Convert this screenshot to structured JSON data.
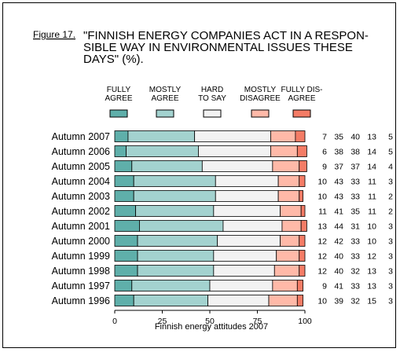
{
  "figure_label": "Figure 17.",
  "title_lines": [
    "\"FINNISH ENERGY COMPANIES ACT IN A RESPON-",
    "SIBLE WAY IN ENVIRONMENTAL ISSUES THESE",
    "DAYS\" (%)."
  ],
  "colors": {
    "fully_agree": "#5fafaa",
    "mostly_agree": "#a3d2cf",
    "hard_to_say": "#f2f2f2",
    "mostly_disagree": "#ffb9a8",
    "fully_disagree": "#f47c66",
    "outline": "#000000"
  },
  "chart_data": {
    "type": "bar",
    "orientation": "horizontal",
    "stacked": true,
    "title": "\"FINNISH ENERGY COMPANIES ACT IN A RESPONSIBLE WAY IN ENVIRONMENTAL ISSUES THESE DAYS\" (%).",
    "xlabel": "Finnish energy attitudes 2007",
    "ylabel": "",
    "xlim": [
      0,
      100
    ],
    "xticks": [
      0,
      25,
      50,
      75,
      100
    ],
    "legend_position": "top",
    "grid": false,
    "categories": [
      "Autumn 2007",
      "Autumn 2006",
      "Autumn 2005",
      "Autumn 2004",
      "Autumn 2003",
      "Autumn 2002",
      "Autumn 2001",
      "Autumn 2000",
      "Autumn 1999",
      "Autumn 1998",
      "Autumn 1997",
      "Autumn 1996"
    ],
    "series": [
      {
        "name": "FULLY AGREE",
        "legend_lines": [
          "FULLY",
          "AGREE"
        ],
        "color": "#5fafaa",
        "values": [
          7,
          6,
          9,
          10,
          10,
          11,
          13,
          12,
          12,
          12,
          9,
          10
        ]
      },
      {
        "name": "MOSTLY AGREE",
        "legend_lines": [
          "MOSTLY",
          "AGREE"
        ],
        "color": "#a3d2cf",
        "values": [
          35,
          38,
          37,
          43,
          43,
          41,
          44,
          42,
          40,
          40,
          41,
          39
        ]
      },
      {
        "name": "HARD TO SAY",
        "legend_lines": [
          "HARD",
          "TO SAY"
        ],
        "color": "#f2f2f2",
        "values": [
          40,
          38,
          37,
          33,
          33,
          35,
          31,
          33,
          33,
          32,
          33,
          32
        ]
      },
      {
        "name": "MOSTLY DISAGREE",
        "legend_lines": [
          "MOSTLY",
          "DISAGREE"
        ],
        "color": "#ffb9a8",
        "values": [
          13,
          14,
          14,
          11,
          11,
          11,
          10,
          10,
          12,
          13,
          13,
          15
        ]
      },
      {
        "name": "FULLY DIS-AGREE",
        "legend_lines": [
          "FULLY DIS-",
          "AGREE"
        ],
        "color": "#f47c66",
        "values": [
          5,
          5,
          4,
          3,
          2,
          2,
          3,
          3,
          3,
          3,
          3,
          3
        ]
      }
    ]
  }
}
